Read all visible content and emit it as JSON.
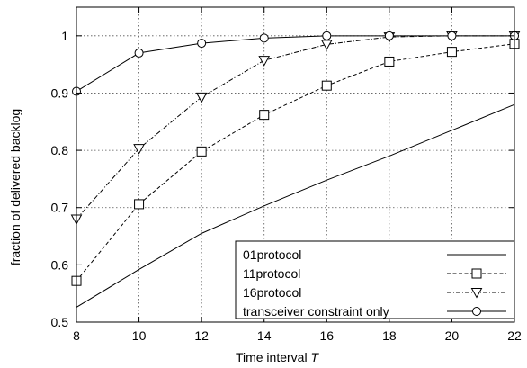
{
  "chart_data": {
    "type": "line",
    "xlabel": "Time interval",
    "xlabel_var": "T",
    "ylabel": "fraction of delivered backlog",
    "xlim": [
      8,
      22
    ],
    "ylim": [
      0.5,
      1.05
    ],
    "x_ticks": [
      8,
      10,
      12,
      14,
      16,
      18,
      20,
      22
    ],
    "y_ticks": [
      0.5,
      0.6,
      0.7,
      0.8,
      0.9,
      1
    ],
    "x_tick_labels": [
      "8",
      "10",
      "12",
      "14",
      "16",
      "18",
      "20",
      "22"
    ],
    "y_tick_labels": [
      "0.5",
      "0.6",
      "0.7",
      "0.8",
      "0.9",
      "1"
    ],
    "grid": true,
    "legend_position": "bottom-right",
    "x": [
      8,
      10,
      12,
      14,
      16,
      18,
      20,
      22
    ],
    "series": [
      {
        "name": "01protocol",
        "marker": "none",
        "line_style": "solid",
        "values": [
          0.526,
          0.592,
          0.655,
          0.703,
          0.748,
          0.79,
          0.835,
          0.88
        ]
      },
      {
        "name": "11protocol",
        "marker": "square",
        "line_style": "dashed",
        "values": [
          0.572,
          0.706,
          0.798,
          0.862,
          0.913,
          0.955,
          0.972,
          0.986
        ]
      },
      {
        "name": "16protocol",
        "marker": "triangle-down",
        "line_style": "dashdot",
        "values": [
          0.68,
          0.803,
          0.893,
          0.957,
          0.985,
          0.998,
          1.0,
          1.0
        ]
      },
      {
        "name": "transceiver constraint only",
        "marker": "circle",
        "line_style": "solid",
        "values": [
          0.903,
          0.97,
          0.987,
          0.996,
          1.0,
          1.0,
          1.0,
          1.0
        ]
      }
    ]
  }
}
